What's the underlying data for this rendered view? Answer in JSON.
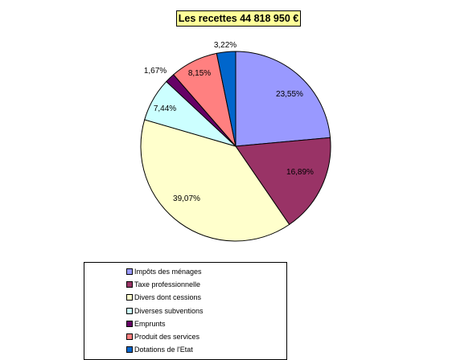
{
  "chart_data": {
    "type": "pie",
    "title": "Les recettes 44 818 950 €",
    "slices": [
      {
        "name": "Impôts des ménages",
        "value": 23.55,
        "label": "23,55%",
        "color": "#9999ff"
      },
      {
        "name": "Taxe professionnelle",
        "value": 16.89,
        "label": "16,89%",
        "color": "#993366"
      },
      {
        "name": "Divers dont cessions",
        "value": 39.07,
        "label": "39,07%",
        "color": "#ffffcc"
      },
      {
        "name": "Diverses subventions",
        "value": 7.44,
        "label": "7,44%",
        "color": "#ccffff"
      },
      {
        "name": "Emprunts",
        "value": 1.67,
        "label": "1,67%",
        "color": "#660066"
      },
      {
        "name": "Produit des services",
        "value": 8.15,
        "label": "8,15%",
        "color": "#ff8080"
      },
      {
        "name": "Dotations de l'Etat",
        "value": 3.22,
        "label": "3,22%",
        "color": "#0066cc"
      }
    ],
    "legend": "bottom-left"
  }
}
